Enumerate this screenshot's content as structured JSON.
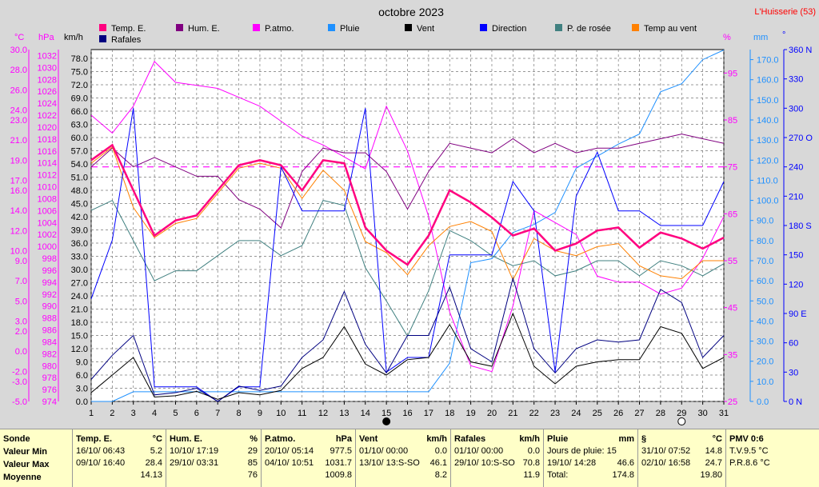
{
  "title": "octobre 2023",
  "station": "L'Huisserie (53)",
  "legend": [
    {
      "name": "Temp. E.",
      "color": "#ff007f"
    },
    {
      "name": "Hum. E.",
      "color": "#800080"
    },
    {
      "name": "P.atmo.",
      "color": "#ff00ff"
    },
    {
      "name": "Pluie",
      "color": "#1e90ff"
    },
    {
      "name": "Vent",
      "color": "#000000"
    },
    {
      "name": "Direction",
      "color": "#0000ff"
    },
    {
      "name": "P. de rosée",
      "color": "#408080"
    },
    {
      "name": "Temp au vent",
      "color": "#ff8000"
    },
    {
      "name": "Rafales",
      "color": "#000080"
    }
  ],
  "axis_units": {
    "temp": "°C",
    "press": "hPa",
    "wind": "km/h",
    "hum": "%",
    "rain": "mm",
    "dir": "°"
  },
  "axes": {
    "temp_ticks": [
      "30.0",
      "28.0",
      "26.0",
      "24.0",
      "23.0",
      "21.0",
      "19.0",
      "17.0",
      "16.0",
      "14.0",
      "12.0",
      "10.0",
      "9.0",
      "7.0",
      "5.0",
      "3.0",
      "2.0",
      "0.0",
      "-2.0",
      "-3.0",
      "-5.0"
    ],
    "press_ticks": [
      "1032",
      "1030",
      "1028",
      "1026",
      "1024",
      "1022",
      "1020",
      "1018",
      "1016",
      "1014",
      "1012",
      "1010",
      "1008",
      "1006",
      "1004",
      "1002",
      "1000",
      "998",
      "996",
      "994",
      "992",
      "990",
      "988",
      "986",
      "984",
      "982",
      "980",
      "978",
      "976",
      "974"
    ],
    "wind_ticks": [
      "78.0",
      "75.0",
      "72.0",
      "69.0",
      "66.0",
      "63.0",
      "60.0",
      "57.0",
      "54.0",
      "51.0",
      "48.0",
      "45.0",
      "42.0",
      "39.0",
      "36.0",
      "33.0",
      "30.0",
      "27.0",
      "24.0",
      "21.0",
      "18.0",
      "15.0",
      "12.0",
      "9.0",
      "6.0",
      "3.0",
      "0.0"
    ],
    "hum_ticks": [
      "95",
      "85",
      "75",
      "65",
      "55",
      "45",
      "35",
      "25"
    ],
    "rain_ticks": [
      "170.0",
      "160.0",
      "150.0",
      "140.0",
      "130.0",
      "120.0",
      "110.0",
      "100.0",
      "90.0",
      "80.0",
      "70.0",
      "60.0",
      "50.0",
      "40.0",
      "30.0",
      "20.0",
      "10.0",
      "0.0"
    ],
    "dir_ticks": [
      "360 N",
      "330",
      "300",
      "270 O",
      "240",
      "210",
      "180 S",
      "150",
      "120",
      "90 E",
      "60",
      "30",
      "0 N"
    ],
    "x_ticks": [
      "1",
      "2",
      "3",
      "4",
      "5",
      "6",
      "7",
      "8",
      "9",
      "10",
      "11",
      "12",
      "13",
      "14",
      "15",
      "16",
      "17",
      "18",
      "19",
      "20",
      "21",
      "22",
      "23",
      "24",
      "25",
      "26",
      "27",
      "28",
      "29",
      "30",
      "31"
    ],
    "moon_days": [
      {
        "day": 15,
        "phase": "new"
      },
      {
        "day": 29,
        "phase": "full"
      }
    ]
  },
  "chart_data": {
    "type": "line",
    "x": [
      1,
      2,
      3,
      4,
      5,
      6,
      7,
      8,
      9,
      10,
      11,
      12,
      13,
      14,
      15,
      16,
      17,
      18,
      19,
      20,
      21,
      22,
      23,
      24,
      25,
      26,
      27,
      28,
      29,
      30,
      31
    ],
    "series": [
      {
        "name": "Temp. E.",
        "axis": "temp",
        "values": [
          19.0,
          20.5,
          16.0,
          11.5,
          13.0,
          13.5,
          16.0,
          18.5,
          19.0,
          18.5,
          16.0,
          19.0,
          18.7,
          12.3,
          10.0,
          8.6,
          11.5,
          16.0,
          14.8,
          13.3,
          11.5,
          12.2,
          10.0,
          10.7,
          12.0,
          12.3,
          10.3,
          11.8,
          11.2,
          10.2,
          11.3
        ]
      },
      {
        "name": "Hum. E.",
        "axis": "hum",
        "values": [
          75,
          79,
          75,
          77,
          75,
          73,
          73,
          68,
          66,
          62,
          74,
          79,
          78,
          78,
          74,
          66,
          74,
          80,
          79,
          78,
          81,
          78,
          80,
          78,
          79,
          79,
          80,
          81,
          82,
          81,
          80
        ]
      },
      {
        "name": "P.atmo.",
        "axis": "press",
        "values": [
          1022,
          1019,
          1023.5,
          1031,
          1027.5,
          1027,
          1026.5,
          1025,
          1023.5,
          1021,
          1018.5,
          1017,
          1015,
          1013,
          1023.5,
          1016,
          1005,
          989,
          980,
          979,
          990,
          1006,
          1004,
          1002,
          995,
          994,
          994,
          992,
          993,
          998,
          1005
        ]
      },
      {
        "name": "Pluie",
        "axis": "rain",
        "values": [
          0,
          0,
          4.8,
          4.8,
          4.8,
          4.8,
          4.8,
          4.8,
          4.8,
          4.8,
          4.8,
          4.8,
          4.8,
          4.8,
          4.8,
          4.8,
          4.8,
          19,
          69,
          71,
          84,
          88,
          94,
          116,
          122,
          128,
          133,
          154,
          158,
          170,
          174.8
        ]
      },
      {
        "name": "Vent",
        "axis": "wind",
        "values": [
          2.0,
          6.0,
          10.0,
          1.0,
          1.3,
          2.3,
          0.5,
          2.0,
          1.5,
          2.5,
          7.5,
          10.0,
          17.0,
          8.5,
          6.0,
          9.5,
          10.0,
          17.5,
          9.0,
          8.0,
          20.0,
          8.0,
          4.0,
          8.0,
          9.0,
          9.5,
          9.5,
          17.0,
          15.5,
          7.5,
          10.0
        ]
      },
      {
        "name": "Direction",
        "axis": "dir",
        "values": [
          105,
          165,
          300,
          15,
          15,
          15,
          0,
          15,
          15,
          240,
          195,
          195,
          195,
          300,
          30,
          45,
          45,
          150,
          150,
          150,
          225,
          195,
          30,
          210,
          255,
          195,
          195,
          180,
          180,
          180,
          225
        ]
      },
      {
        "name": "P. de rosée",
        "axis": "temp",
        "values": [
          14.0,
          15.0,
          11.0,
          7.0,
          8.0,
          8.0,
          9.5,
          11.0,
          11.0,
          9.5,
          10.5,
          15.0,
          14.5,
          8.3,
          5.0,
          1.5,
          6.0,
          12.0,
          11.0,
          9.5,
          8.5,
          9.0,
          7.5,
          8.0,
          9.0,
          9.0,
          7.5,
          9.0,
          8.5,
          7.5,
          8.7
        ]
      },
      {
        "name": "Temp au vent",
        "axis": "temp",
        "values": [
          18.7,
          20.3,
          14.3,
          11.3,
          12.7,
          13.2,
          15.7,
          18.2,
          18.7,
          18.2,
          15.2,
          18.0,
          16.0,
          10.9,
          9.8,
          7.6,
          10.5,
          12.4,
          12.9,
          11.9,
          7.1,
          11.2,
          10.0,
          9.5,
          10.4,
          10.7,
          8.5,
          7.5,
          7.2,
          9.0,
          9.0
        ]
      },
      {
        "name": "Rafales",
        "axis": "wind",
        "values": [
          5.0,
          10.5,
          15.0,
          1.5,
          2.0,
          3.0,
          0.0,
          3.5,
          2.5,
          3.5,
          10.0,
          14.0,
          25.0,
          13.0,
          6.5,
          15.0,
          15.0,
          26.0,
          12.0,
          9.0,
          28.0,
          12.0,
          6.5,
          12.0,
          14.0,
          13.5,
          14.0,
          25.5,
          22.5,
          10.0,
          15.0
        ]
      }
    ],
    "reference_line": {
      "axis": "hum",
      "value": 75
    },
    "yaxes": {
      "temp": {
        "unit": "°C",
        "min": -5,
        "max": 30
      },
      "press": {
        "unit": "hPa",
        "min": 974,
        "max": 1033
      },
      "wind": {
        "unit": "km/h",
        "min": 0,
        "max": 80
      },
      "hum": {
        "unit": "%",
        "min": 25,
        "max": 100
      },
      "rain": {
        "unit": "mm",
        "min": 0,
        "max": 175
      },
      "dir": {
        "unit": "°",
        "min": 0,
        "max": 360
      }
    },
    "xlim": [
      1,
      31
    ],
    "grid": true
  },
  "stats": {
    "row_labels": [
      "Sonde",
      "Valeur Min",
      "Valeur Max",
      "Moyenne"
    ],
    "columns": [
      {
        "title": "Temp. E.",
        "unit": "°C",
        "rows": [
          [
            "16/10/ 06:43",
            "5.2"
          ],
          [
            "09/10/ 16:40",
            "28.4"
          ],
          [
            "",
            "14.13"
          ]
        ]
      },
      {
        "title": "Hum. E.",
        "unit": "%",
        "rows": [
          [
            "10/10/ 17:19",
            "29"
          ],
          [
            "29/10/ 03:31",
            "85"
          ],
          [
            "",
            "76"
          ]
        ]
      },
      {
        "title": "P.atmo.",
        "unit": "hPa",
        "rows": [
          [
            "20/10/ 05:14",
            "977.5"
          ],
          [
            "04/10/ 10:51",
            "1031.7"
          ],
          [
            "",
            "1009.8"
          ]
        ]
      },
      {
        "title": "Vent",
        "unit": "km/h",
        "rows": [
          [
            "01/10/ 00:00",
            "0.0"
          ],
          [
            "13/10/ 13:S-SO",
            "46.1"
          ],
          [
            "",
            "8.2"
          ]
        ]
      },
      {
        "title": "Rafales",
        "unit": "km/h",
        "rows": [
          [
            "01/10/ 00:00",
            "0.0"
          ],
          [
            "29/10/ 10:S-SO",
            "70.8"
          ],
          [
            "",
            "11.9"
          ]
        ]
      },
      {
        "title": "Pluie",
        "unit": "mm",
        "rows": [
          [
            "Jours de pluie: 15",
            ""
          ],
          [
            "19/10/ 14:28",
            "46.6"
          ],
          [
            "Total:",
            "174.8"
          ]
        ]
      },
      {
        "title": "§",
        "unit": "°C",
        "rows": [
          [
            "31/10/ 07:52",
            "14.8"
          ],
          [
            "02/10/ 16:58",
            "24.7"
          ],
          [
            "",
            "19.80"
          ]
        ]
      },
      {
        "title": "PMV 0:6",
        "unit": "",
        "rows": [
          [
            "T.V.9.5 °C",
            ""
          ],
          [
            "P.R.8.6 °C",
            ""
          ],
          [
            "",
            ""
          ]
        ]
      }
    ]
  }
}
